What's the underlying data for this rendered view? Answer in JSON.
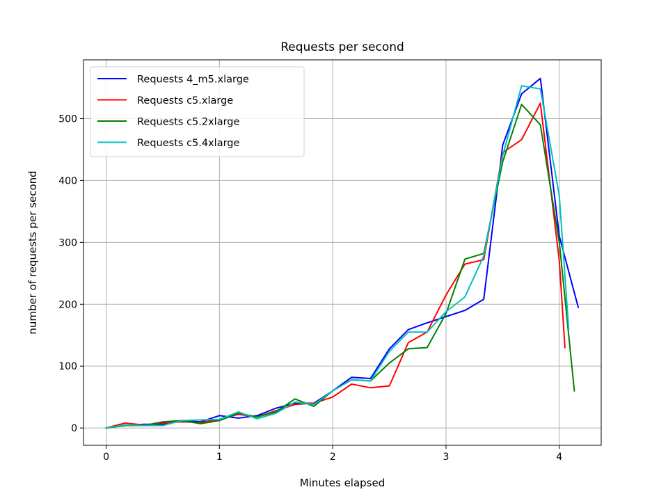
{
  "chart_data": {
    "type": "line",
    "title": "Requests per second",
    "xlabel": "Minutes elapsed",
    "ylabel": "number of requests per second",
    "xlim": [
      -0.2,
      4.37
    ],
    "ylim": [
      -28,
      595
    ],
    "xticks": [
      0,
      1,
      2,
      3,
      4
    ],
    "yticks": [
      0,
      100,
      200,
      300,
      400,
      500
    ],
    "grid": true,
    "legend_position": "upper-left",
    "series": [
      {
        "name": "Requests 4_m5.xlarge",
        "color": "#0000ff",
        "x": [
          0,
          0.167,
          0.333,
          0.5,
          0.667,
          0.833,
          1.0,
          1.167,
          1.333,
          1.5,
          1.667,
          1.833,
          2.0,
          2.167,
          2.333,
          2.5,
          2.667,
          2.833,
          3.0,
          3.167,
          3.333,
          3.5,
          3.667,
          3.833,
          4.0,
          4.167
        ],
        "y": [
          0,
          4,
          6,
          6,
          12,
          10,
          20,
          16,
          20,
          32,
          40,
          40,
          60,
          82,
          80,
          128,
          159,
          170,
          180,
          190,
          208,
          457,
          540,
          565,
          310,
          195
        ]
      },
      {
        "name": "Requests c5.xlarge",
        "color": "#ff0000",
        "x": [
          0,
          0.167,
          0.333,
          0.5,
          0.667,
          0.833,
          1.0,
          1.167,
          1.333,
          1.5,
          1.667,
          1.833,
          2.0,
          2.167,
          2.333,
          2.5,
          2.667,
          2.833,
          3.0,
          3.167,
          3.333,
          3.5,
          3.667,
          3.833,
          4.0,
          4.05
        ],
        "y": [
          0,
          8,
          5,
          8,
          10,
          9,
          14,
          22,
          18,
          28,
          38,
          40,
          50,
          71,
          65,
          68,
          138,
          155,
          215,
          265,
          272,
          445,
          466,
          525,
          270,
          130
        ]
      },
      {
        "name": "Requests c5.2xlarge",
        "color": "#008000",
        "x": [
          0,
          0.167,
          0.333,
          0.5,
          0.667,
          0.833,
          1.0,
          1.167,
          1.333,
          1.5,
          1.667,
          1.833,
          2.0,
          2.167,
          2.333,
          2.5,
          2.667,
          2.833,
          3.0,
          3.167,
          3.333,
          3.5,
          3.667,
          3.833,
          4.0,
          4.133
        ],
        "y": [
          0,
          4,
          4,
          10,
          12,
          7,
          12,
          24,
          18,
          26,
          47,
          35,
          60,
          78,
          76,
          105,
          128,
          130,
          185,
          273,
          282,
          430,
          523,
          490,
          300,
          60
        ]
      },
      {
        "name": "Requests c5.4xlarge",
        "color": "#00bfbf",
        "x": [
          0,
          0.167,
          0.333,
          0.5,
          0.667,
          0.833,
          1.0,
          1.167,
          1.333,
          1.5,
          1.667,
          1.833,
          2.0,
          2.167,
          2.333,
          2.5,
          2.667,
          2.833,
          3.0,
          3.167,
          3.333,
          3.5,
          3.667,
          3.833,
          4.0,
          4.083
        ],
        "y": [
          0,
          5,
          4,
          4,
          12,
          13,
          14,
          26,
          15,
          24,
          42,
          38,
          60,
          78,
          76,
          124,
          155,
          155,
          188,
          212,
          278,
          440,
          553,
          548,
          375,
          160
        ]
      }
    ]
  }
}
